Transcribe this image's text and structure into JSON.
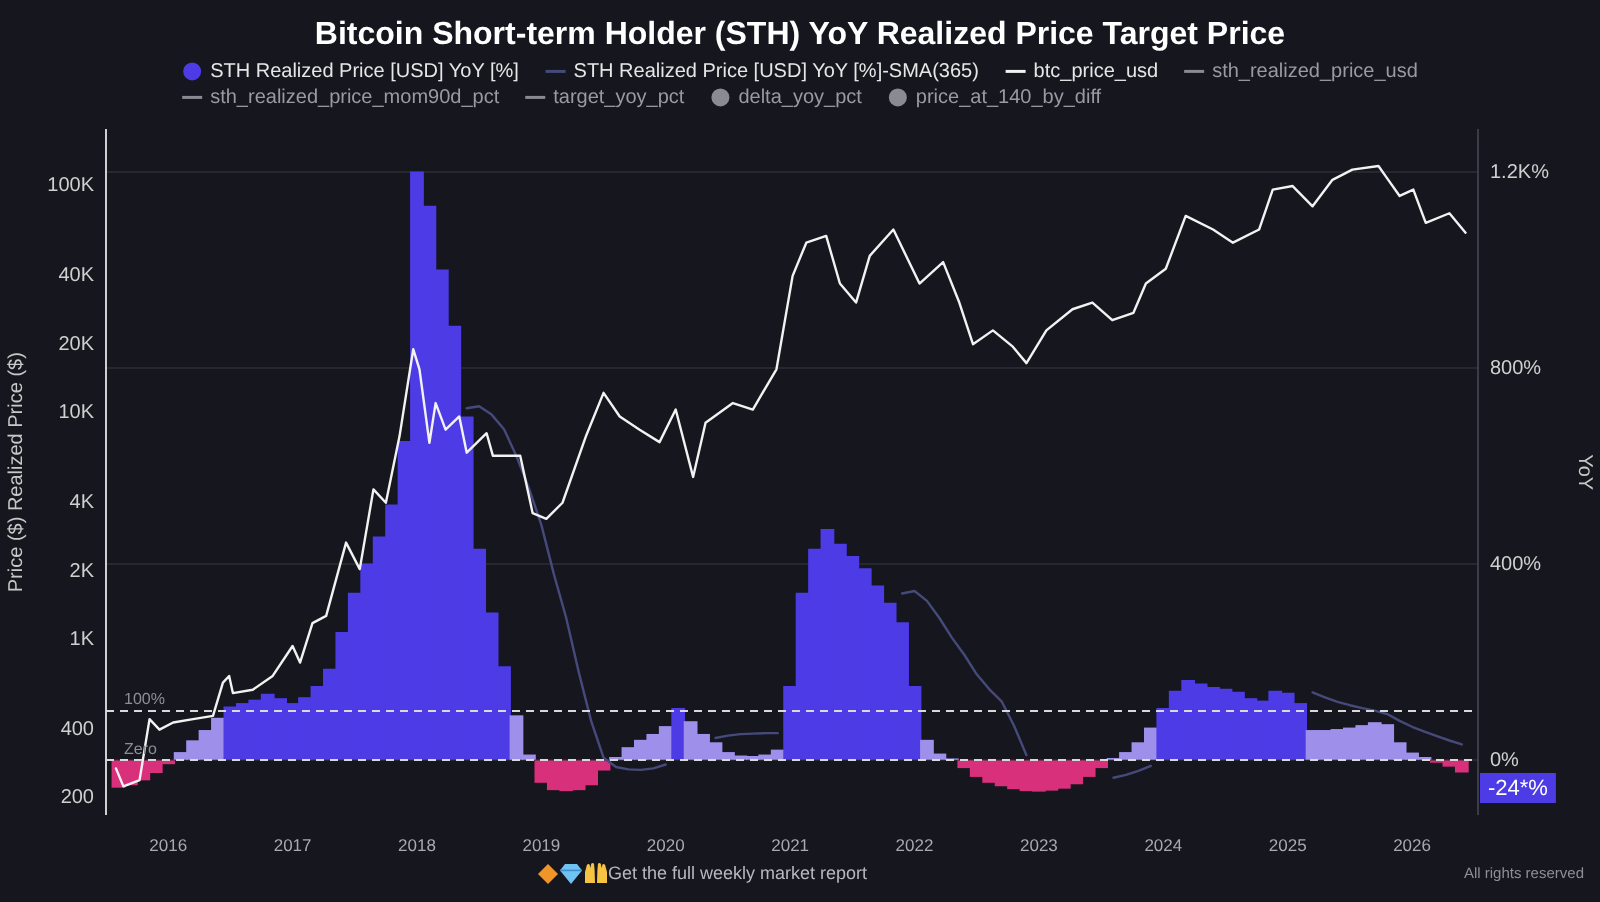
{
  "chart_data": {
    "type": "line",
    "title": "Bitcoin Short-term Holder (STH) YoY Realized Price Target Price",
    "ylabel": "Price ($) Realized Price ($)",
    "y2label": "YoY",
    "x": [
      2015.6,
      2015.7,
      2015.8,
      2015.9,
      2016,
      2016.1,
      2016.2,
      2016.3,
      2016.4,
      2016.5,
      2016.6,
      2016.7,
      2016.8,
      2016.9,
      2017,
      2017.1,
      2017.2,
      2017.3,
      2017.4,
      2017.5,
      2017.6,
      2017.7,
      2017.8,
      2017.9,
      2018,
      2018.1,
      2018.2,
      2018.3,
      2018.4,
      2018.5,
      2018.6,
      2018.7,
      2018.8,
      2018.9,
      2019,
      2019.1,
      2019.2,
      2019.3,
      2019.4,
      2019.5,
      2019.6,
      2019.7,
      2019.8,
      2019.9,
      2020,
      2020.1,
      2020.2,
      2020.3,
      2020.4,
      2020.5,
      2020.6,
      2020.7,
      2020.8,
      2020.9,
      2021,
      2021.1,
      2021.2,
      2021.3,
      2021.4,
      2021.5,
      2021.6,
      2021.7,
      2021.8,
      2021.9,
      2022,
      2022.1,
      2022.2,
      2022.3,
      2022.4,
      2022.5,
      2022.6,
      2022.7,
      2022.8,
      2022.9,
      2023,
      2023.1,
      2023.2,
      2023.3,
      2023.4,
      2023.5,
      2023.6,
      2023.7,
      2023.8,
      2023.9,
      2024,
      2024.1,
      2024.2,
      2024.3,
      2024.4,
      2024.5,
      2024.6,
      2024.7,
      2024.8,
      2024.9,
      2025,
      2025.1,
      2025.2,
      2025.3,
      2025.4,
      2025.5,
      2025.6,
      2025.7,
      2025.8,
      2025.9,
      2026,
      2026.1,
      2026.2,
      2026.3,
      2026.4
    ],
    "xlim": [
      2015.5,
      2026.53
    ],
    "xticks": [
      2016,
      2017,
      2018,
      2019,
      2020,
      2021,
      2022,
      2023,
      2024,
      2025,
      2026
    ],
    "ylim": [
      170,
      175000
    ],
    "yticks": [
      200,
      400,
      {
        "value": 1000,
        "label": "1K"
      },
      {
        "value": 2000,
        "label": "2K"
      },
      {
        "value": 4000,
        "label": "4K"
      },
      {
        "value": 10000,
        "label": "10K"
      },
      {
        "value": 20000,
        "label": "20K"
      },
      {
        "value": 40000,
        "label": "40K"
      },
      {
        "value": 100000,
        "label": "100K"
      }
    ],
    "y2lim": [
      -110,
      1285
    ],
    "y2ticks": [
      {
        "value": 0,
        "label": "0%"
      },
      {
        "value": 400,
        "label": "400%"
      },
      {
        "value": 800,
        "label": "800%"
      },
      {
        "value": 1200,
        "label": "1.2K%"
      }
    ],
    "log": true,
    "grid": "y",
    "legend": "top",
    "series": [
      {
        "name": "STH Realized Price [USD] YoY [%]",
        "type": "bar",
        "axis": "y2",
        "color": "#4d3be6",
        "values": [
          -55,
          -50,
          -40,
          -25,
          -7,
          15,
          39,
          60,
          85,
          108,
          115,
          122,
          134,
          125,
          115,
          127,
          150,
          185,
          260,
          340,
          400,
          455,
          520,
          650,
          1200,
          1130,
          1000,
          885,
          700,
          430,
          300,
          190,
          90,
          10,
          -45,
          -60,
          -62,
          -60,
          -50,
          -20,
          5,
          25,
          40,
          52,
          68,
          105,
          78,
          52,
          35,
          15,
          8,
          7,
          10,
          20,
          150,
          340,
          430,
          470,
          440,
          415,
          390,
          355,
          320,
          280,
          150,
          40,
          12,
          2,
          -15,
          -33,
          -45,
          -52,
          -58,
          -62,
          -63,
          -61,
          -57,
          -48,
          -33,
          -15,
          3,
          15,
          35,
          65,
          105,
          140,
          162,
          155,
          148,
          144,
          138,
          125,
          120,
          140,
          136,
          115,
          60,
          60,
          62,
          65,
          70,
          76,
          72,
          35,
          14,
          5,
          -4,
          -12,
          -24
        ],
        "colors": [
          "#d8307a",
          "#d8307a",
          "#d8307a",
          "#d8307a",
          "#d8307a",
          "#9e90ea",
          "#9e90ea",
          "#9e90ea",
          "#9e90ea",
          "#4d3be6",
          "#4d3be6",
          "#4d3be6",
          "#4d3be6",
          "#4d3be6",
          "#4d3be6",
          "#4d3be6",
          "#4d3be6",
          "#4d3be6",
          "#4d3be6",
          "#4d3be6",
          "#4d3be6",
          "#4d3be6",
          "#4d3be6",
          "#4d3be6",
          "#4d3be6",
          "#4d3be6",
          "#4d3be6",
          "#4d3be6",
          "#4d3be6",
          "#4d3be6",
          "#4d3be6",
          "#4d3be6",
          "#9e90ea",
          "#9e90ea",
          "#d8307a",
          "#d8307a",
          "#d8307a",
          "#d8307a",
          "#d8307a",
          "#d8307a",
          "#9e90ea",
          "#9e90ea",
          "#9e90ea",
          "#9e90ea",
          "#9e90ea",
          "#4d3be6",
          "#9e90ea",
          "#9e90ea",
          "#9e90ea",
          "#9e90ea",
          "#9e90ea",
          "#9e90ea",
          "#9e90ea",
          "#9e90ea",
          "#4d3be6",
          "#4d3be6",
          "#4d3be6",
          "#4d3be6",
          "#4d3be6",
          "#4d3be6",
          "#4d3be6",
          "#4d3be6",
          "#4d3be6",
          "#4d3be6",
          "#4d3be6",
          "#9e90ea",
          "#9e90ea",
          "#9e90ea",
          "#d8307a",
          "#d8307a",
          "#d8307a",
          "#d8307a",
          "#d8307a",
          "#d8307a",
          "#d8307a",
          "#d8307a",
          "#d8307a",
          "#d8307a",
          "#d8307a",
          "#d8307a",
          "#9e90ea",
          "#9e90ea",
          "#9e90ea",
          "#9e90ea",
          "#4d3be6",
          "#4d3be6",
          "#4d3be6",
          "#4d3be6",
          "#4d3be6",
          "#4d3be6",
          "#4d3be6",
          "#4d3be6",
          "#4d3be6",
          "#4d3be6",
          "#4d3be6",
          "#4d3be6",
          "#9e90ea",
          "#9e90ea",
          "#9e90ea",
          "#9e90ea",
          "#9e90ea",
          "#9e90ea",
          "#9e90ea",
          "#9e90ea",
          "#9e90ea",
          "#9e90ea",
          "#d8307a",
          "#d8307a",
          "#d8307a"
        ]
      },
      {
        "name": "STH Realized Price [USD] YoY [%]-SMA(365)",
        "axis": "y2",
        "color": "#454a7a",
        "values": [
          null,
          null,
          null,
          null,
          null,
          null,
          null,
          null,
          null,
          null,
          null,
          null,
          null,
          null,
          null,
          null,
          null,
          null,
          null,
          null,
          null,
          null,
          null,
          null,
          null,
          null,
          null,
          null,
          718,
          722,
          705,
          675,
          620,
          555,
          480,
          380,
          290,
          180,
          80,
          5,
          -14,
          -19,
          -20,
          -17,
          -9,
          null,
          null,
          null,
          45,
          50,
          53,
          54,
          55,
          55,
          null,
          null,
          null,
          null,
          null,
          null,
          null,
          null,
          null,
          340,
          345,
          325,
          290,
          250,
          215,
          175,
          145,
          120,
          70,
          10,
          null,
          null,
          null,
          null,
          null,
          null,
          -36,
          -30,
          -22,
          -12,
          null,
          null,
          null,
          null,
          null,
          null,
          null,
          null,
          null,
          null,
          null,
          null,
          138,
          128,
          119,
          112,
          106,
          101,
          94,
          80,
          68,
          58,
          49,
          40,
          32
        ]
      },
      {
        "name": "btc_price_usd",
        "color": "#f2f2f2",
        "x": [
          2015.58,
          2015.64,
          2015.77,
          2015.85,
          2015.93,
          2016.04,
          2016.2,
          2016.36,
          2016.44,
          2016.49,
          2016.52,
          2016.68,
          2016.84,
          2017,
          2017.06,
          2017.16,
          2017.27,
          2017.43,
          2017.54,
          2017.65,
          2017.75,
          2017.86,
          2017.97,
          2018.02,
          2018.1,
          2018.15,
          2018.23,
          2018.34,
          2018.4,
          2018.56,
          2018.61,
          2018.83,
          2018.93,
          2019.04,
          2019.17,
          2019.36,
          2019.5,
          2019.63,
          2019.79,
          2019.95,
          2020.08,
          2020.22,
          2020.32,
          2020.54,
          2020.7,
          2020.89,
          2021.02,
          2021.13,
          2021.29,
          2021.4,
          2021.53,
          2021.64,
          2021.83,
          2022.04,
          2022.23,
          2022.36,
          2022.47,
          2022.63,
          2022.79,
          2022.9,
          2023.06,
          2023.27,
          2023.43,
          2023.59,
          2023.76,
          2023.86,
          2024.02,
          2024.18,
          2024.4,
          2024.56,
          2024.77,
          2024.88,
          2025.04,
          2025.2,
          2025.36,
          2025.52,
          2025.73,
          2025.79,
          2025.9,
          2026.01,
          2026.11,
          2026.3,
          2026.43
        ],
        "values": [
          270,
          225,
          240,
          445,
          400,
          430,
          445,
          460,
          645,
          690,
          580,
          600,
          690,
          935,
          790,
          1180,
          1270,
          2670,
          2040,
          4580,
          4000,
          7870,
          19000,
          15500,
          7350,
          11000,
          8400,
          9600,
          6650,
          8100,
          6450,
          6450,
          3600,
          3400,
          4000,
          7900,
          12200,
          9600,
          8400,
          7400,
          10300,
          5200,
          9000,
          11000,
          10300,
          15500,
          40000,
          56000,
          60000,
          37000,
          30500,
          49000,
          64000,
          37000,
          46000,
          30500,
          20000,
          23000,
          19500,
          16500,
          23000,
          28500,
          30500,
          25500,
          27500,
          37000,
          43000,
          73500,
          64000,
          56000,
          64000,
          96000,
          99500,
          81000,
          106000,
          117500,
          122000,
          109500,
          90000,
          96000,
          68500,
          75500,
          62000
        ]
      },
      {
        "name": "sth_realized_price_usd",
        "color": "#8a8a92",
        "values": [
          null,
          null,
          null,
          null,
          null,
          null,
          null,
          null,
          null,
          null,
          null,
          null,
          null,
          null,
          null,
          null,
          null,
          null,
          null,
          null,
          null,
          null,
          null,
          null,
          null,
          null,
          null,
          null,
          null,
          null,
          null,
          null,
          null,
          null,
          null,
          null,
          null,
          null,
          null,
          null,
          null,
          null,
          null,
          null,
          null,
          null,
          null,
          null,
          null,
          null,
          null,
          null,
          null,
          null,
          null,
          null,
          null,
          null,
          null,
          null,
          null,
          null,
          null,
          null,
          null,
          null,
          null,
          null,
          null,
          null,
          null,
          null,
          null,
          null,
          null,
          null,
          null,
          null,
          null,
          null,
          null,
          null,
          null,
          null,
          null,
          null,
          null,
          null,
          null,
          null,
          null,
          null,
          null,
          null,
          null,
          null,
          null,
          null,
          null,
          null,
          null,
          null,
          null,
          null,
          null,
          null,
          null,
          null,
          null
        ]
      },
      {
        "name": "sth_realized_price_mom90d_pct",
        "color": "#8a8a92",
        "values": [
          null,
          null,
          null,
          null,
          null,
          null,
          null,
          null,
          null,
          null,
          null,
          null,
          null,
          null,
          null,
          null,
          null,
          null,
          null,
          null,
          null,
          null,
          null,
          null,
          null,
          null,
          null,
          null,
          null,
          null,
          null,
          null,
          null,
          null,
          null,
          null,
          null,
          null,
          null,
          null,
          null,
          null,
          null,
          null,
          null,
          null,
          null,
          null,
          null,
          null,
          null,
          null,
          null,
          null,
          null,
          null,
          null,
          null,
          null,
          null,
          null,
          null,
          null,
          null,
          null,
          null,
          null,
          null,
          null,
          null,
          null,
          null,
          null,
          null,
          null,
          null,
          null,
          null,
          null,
          null,
          null,
          null,
          null,
          null,
          null,
          null,
          null,
          null,
          null,
          null,
          null,
          null,
          null,
          null,
          null,
          null,
          null,
          null,
          null,
          null,
          null,
          null,
          null,
          null,
          null,
          null,
          null,
          null,
          null
        ]
      },
      {
        "name": "target_yoy_pct",
        "color": "#8a8a92",
        "values": [
          null,
          null,
          null,
          null,
          null,
          null,
          null,
          null,
          null,
          null,
          null,
          null,
          null,
          null,
          null,
          null,
          null,
          null,
          null,
          null,
          null,
          null,
          null,
          null,
          null,
          null,
          null,
          null,
          null,
          null,
          null,
          null,
          null,
          null,
          null,
          null,
          null,
          null,
          null,
          null,
          null,
          null,
          null,
          null,
          null,
          null,
          null,
          null,
          null,
          null,
          null,
          null,
          null,
          null,
          null,
          null,
          null,
          null,
          null,
          null,
          null,
          null,
          null,
          null,
          null,
          null,
          null,
          null,
          null,
          null,
          null,
          null,
          null,
          null,
          null,
          null,
          null,
          null,
          null,
          null,
          null,
          null,
          null,
          null,
          null,
          null,
          null,
          null,
          null,
          null,
          null,
          null,
          null,
          null,
          null,
          null,
          null,
          null,
          null,
          null,
          null,
          null,
          null,
          null,
          null,
          null,
          null,
          null,
          null
        ]
      },
      {
        "name": "delta_yoy_pct",
        "type": "bar",
        "color": "#8a8a92",
        "values": [
          null,
          null,
          null,
          null,
          null,
          null,
          null,
          null,
          null,
          null,
          null,
          null,
          null,
          null,
          null,
          null,
          null,
          null,
          null,
          null,
          null,
          null,
          null,
          null,
          null,
          null,
          null,
          null,
          null,
          null,
          null,
          null,
          null,
          null,
          null,
          null,
          null,
          null,
          null,
          null,
          null,
          null,
          null,
          null,
          null,
          null,
          null,
          null,
          null,
          null,
          null,
          null,
          null,
          null,
          null,
          null,
          null,
          null,
          null,
          null,
          null,
          null,
          null,
          null,
          null,
          null,
          null,
          null,
          null,
          null,
          null,
          null,
          null,
          null,
          null,
          null,
          null,
          null,
          null,
          null,
          null,
          null,
          null,
          null,
          null,
          null,
          null,
          null,
          null,
          null,
          null,
          null,
          null,
          null,
          null,
          null,
          null,
          null,
          null,
          null,
          null,
          null,
          null,
          null,
          null,
          null,
          null,
          null,
          null
        ]
      },
      {
        "name": "price_at_140_by_diff",
        "type": "bar",
        "color": "#8a8a92",
        "values": [
          null,
          null,
          null,
          null,
          null,
          null,
          null,
          null,
          null,
          null,
          null,
          null,
          null,
          null,
          null,
          null,
          null,
          null,
          null,
          null,
          null,
          null,
          null,
          null,
          null,
          null,
          null,
          null,
          null,
          null,
          null,
          null,
          null,
          null,
          null,
          null,
          null,
          null,
          null,
          null,
          null,
          null,
          null,
          null,
          null,
          null,
          null,
          null,
          null,
          null,
          null,
          null,
          null,
          null,
          null,
          null,
          null,
          null,
          null,
          null,
          null,
          null,
          null,
          null,
          null,
          null,
          null,
          null,
          null,
          null,
          null,
          null,
          null,
          null,
          null,
          null,
          null,
          null,
          null,
          null,
          null,
          null,
          null,
          null,
          null,
          null,
          null,
          null,
          null,
          null,
          null,
          null,
          null,
          null,
          null,
          null,
          null,
          null,
          null,
          null,
          null,
          null,
          null,
          null,
          null,
          null,
          null,
          null,
          null
        ]
      }
    ],
    "ref_lines": [
      {
        "axis": "y2",
        "value": 100,
        "label": "100%",
        "color": "#d9d9d9",
        "line_style": "dashed"
      },
      {
        "axis": "y2",
        "value": 0,
        "label": "Zero",
        "color": "#d9d9d9",
        "line_style": "dashed"
      }
    ],
    "annotations": [
      "-24*%",
      "Get the full weekly market report",
      "All rights reserved"
    ]
  }
}
